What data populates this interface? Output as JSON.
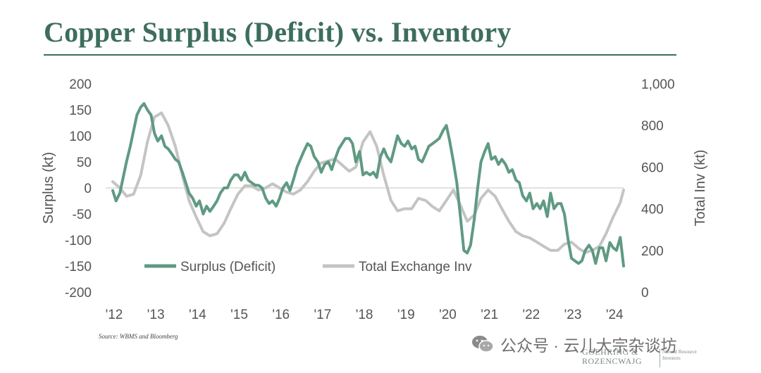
{
  "title": "Copper Surplus (Deficit) vs. Inventory",
  "source": "Source: WBMS and Bloomberg",
  "watermark": "公众号 · 云儿大宗杂谈坊",
  "brand": {
    "line1": "GOEHRING &",
    "line2": "ROZENCWAJG",
    "sub1": "Natural Resource",
    "sub2": "Investors"
  },
  "colors": {
    "title": "#3d6e5c",
    "surplus": "#5f9a82",
    "inventory": "#c4c4c4",
    "zero": "#d8d8d8",
    "axis_text": "#555555"
  },
  "chart_data": {
    "type": "line",
    "title": "Copper Surplus (Deficit) vs. Inventory",
    "ylabel": "Surplus (kt)",
    "y2label": "Total Inv (kt)",
    "x_ticks": [
      "'12",
      "'13",
      "'14",
      "'15",
      "'16",
      "'17",
      "'18",
      "'19",
      "'20",
      "'21",
      "'22",
      "'23",
      "'24"
    ],
    "ylim": [
      -200,
      200
    ],
    "y_ticks": [
      "200",
      "150",
      "100",
      "50",
      "0",
      "-50",
      "-100",
      "-150",
      "-200"
    ],
    "y2lim": [
      0,
      1000
    ],
    "y2_ticks": [
      "1,000",
      "800",
      "600",
      "400",
      "200",
      "0"
    ],
    "legend": {
      "placement": "bottom-left",
      "entries": [
        "Surplus (Deficit)",
        "Total Exchange Inv"
      ]
    },
    "series": [
      {
        "name": "Surplus (Deficit)",
        "axis": "left",
        "points": [
          [
            2012.0,
            -5
          ],
          [
            2012.08,
            -25
          ],
          [
            2012.17,
            -10
          ],
          [
            2012.25,
            20
          ],
          [
            2012.33,
            50
          ],
          [
            2012.42,
            80
          ],
          [
            2012.5,
            110
          ],
          [
            2012.58,
            140
          ],
          [
            2012.67,
            155
          ],
          [
            2012.75,
            162
          ],
          [
            2012.83,
            150
          ],
          [
            2012.92,
            140
          ],
          [
            2013.0,
            105
          ],
          [
            2013.08,
            90
          ],
          [
            2013.17,
            100
          ],
          [
            2013.25,
            80
          ],
          [
            2013.33,
            75
          ],
          [
            2013.42,
            65
          ],
          [
            2013.5,
            55
          ],
          [
            2013.58,
            50
          ],
          [
            2013.67,
            30
          ],
          [
            2013.75,
            10
          ],
          [
            2013.83,
            -10
          ],
          [
            2013.92,
            -20
          ],
          [
            2014.0,
            -35
          ],
          [
            2014.08,
            -25
          ],
          [
            2014.17,
            -50
          ],
          [
            2014.25,
            -35
          ],
          [
            2014.33,
            -45
          ],
          [
            2014.42,
            -35
          ],
          [
            2014.5,
            -25
          ],
          [
            2014.58,
            -10
          ],
          [
            2014.67,
            0
          ],
          [
            2014.75,
            0
          ],
          [
            2014.83,
            15
          ],
          [
            2014.92,
            25
          ],
          [
            2015.0,
            25
          ],
          [
            2015.08,
            15
          ],
          [
            2015.17,
            30
          ],
          [
            2015.25,
            15
          ],
          [
            2015.33,
            10
          ],
          [
            2015.42,
            5
          ],
          [
            2015.5,
            5
          ],
          [
            2015.58,
            0
          ],
          [
            2015.67,
            -20
          ],
          [
            2015.75,
            -30
          ],
          [
            2015.83,
            -25
          ],
          [
            2015.92,
            -35
          ],
          [
            2016.0,
            -20
          ],
          [
            2016.08,
            0
          ],
          [
            2016.17,
            10
          ],
          [
            2016.25,
            -5
          ],
          [
            2016.33,
            15
          ],
          [
            2016.42,
            40
          ],
          [
            2016.5,
            55
          ],
          [
            2016.58,
            70
          ],
          [
            2016.67,
            85
          ],
          [
            2016.75,
            80
          ],
          [
            2016.83,
            60
          ],
          [
            2016.92,
            50
          ],
          [
            2017.0,
            30
          ],
          [
            2017.08,
            45
          ],
          [
            2017.17,
            50
          ],
          [
            2017.25,
            35
          ],
          [
            2017.33,
            55
          ],
          [
            2017.42,
            75
          ],
          [
            2017.5,
            85
          ],
          [
            2017.58,
            95
          ],
          [
            2017.67,
            95
          ],
          [
            2017.75,
            85
          ],
          [
            2017.83,
            50
          ],
          [
            2017.92,
            70
          ],
          [
            2018.0,
            25
          ],
          [
            2018.08,
            30
          ],
          [
            2018.17,
            25
          ],
          [
            2018.25,
            30
          ],
          [
            2018.33,
            20
          ],
          [
            2018.42,
            60
          ],
          [
            2018.5,
            75
          ],
          [
            2018.58,
            60
          ],
          [
            2018.67,
            50
          ],
          [
            2018.75,
            75
          ],
          [
            2018.83,
            100
          ],
          [
            2018.92,
            85
          ],
          [
            2019.0,
            80
          ],
          [
            2019.08,
            90
          ],
          [
            2019.17,
            75
          ],
          [
            2019.25,
            80
          ],
          [
            2019.33,
            55
          ],
          [
            2019.42,
            50
          ],
          [
            2019.5,
            65
          ],
          [
            2019.58,
            80
          ],
          [
            2019.67,
            85
          ],
          [
            2019.75,
            90
          ],
          [
            2019.83,
            95
          ],
          [
            2019.92,
            110
          ],
          [
            2020.0,
            120
          ],
          [
            2020.08,
            90
          ],
          [
            2020.17,
            50
          ],
          [
            2020.25,
            10
          ],
          [
            2020.33,
            -50
          ],
          [
            2020.42,
            -120
          ],
          [
            2020.5,
            -125
          ],
          [
            2020.58,
            -110
          ],
          [
            2020.67,
            -60
          ],
          [
            2020.75,
            0
          ],
          [
            2020.83,
            50
          ],
          [
            2020.92,
            70
          ],
          [
            2021.0,
            85
          ],
          [
            2021.08,
            55
          ],
          [
            2021.17,
            60
          ],
          [
            2021.25,
            45
          ],
          [
            2021.33,
            55
          ],
          [
            2021.42,
            45
          ],
          [
            2021.5,
            30
          ],
          [
            2021.58,
            35
          ],
          [
            2021.67,
            15
          ],
          [
            2021.75,
            10
          ],
          [
            2021.83,
            -15
          ],
          [
            2021.92,
            -25
          ],
          [
            2022.0,
            -10
          ],
          [
            2022.08,
            -40
          ],
          [
            2022.17,
            -30
          ],
          [
            2022.25,
            -40
          ],
          [
            2022.33,
            -25
          ],
          [
            2022.42,
            -55
          ],
          [
            2022.5,
            -10
          ],
          [
            2022.58,
            -40
          ],
          [
            2022.67,
            -30
          ],
          [
            2022.75,
            -30
          ],
          [
            2022.83,
            -50
          ],
          [
            2022.92,
            -100
          ],
          [
            2023.0,
            -135
          ],
          [
            2023.08,
            -140
          ],
          [
            2023.17,
            -145
          ],
          [
            2023.25,
            -140
          ],
          [
            2023.33,
            -120
          ],
          [
            2023.42,
            -110
          ],
          [
            2023.5,
            -120
          ],
          [
            2023.58,
            -145
          ],
          [
            2023.67,
            -115
          ],
          [
            2023.75,
            -115
          ],
          [
            2023.83,
            -140
          ],
          [
            2023.92,
            -105
          ],
          [
            2024.0,
            -115
          ],
          [
            2024.08,
            -120
          ],
          [
            2024.17,
            -95
          ],
          [
            2024.25,
            -150
          ]
        ]
      },
      {
        "name": "Total Exchange Inv",
        "axis": "right",
        "points": [
          [
            2012.0,
            530
          ],
          [
            2012.17,
            500
          ],
          [
            2012.33,
            460
          ],
          [
            2012.5,
            470
          ],
          [
            2012.67,
            560
          ],
          [
            2012.83,
            720
          ],
          [
            2013.0,
            840
          ],
          [
            2013.17,
            860
          ],
          [
            2013.33,
            800
          ],
          [
            2013.5,
            700
          ],
          [
            2013.67,
            560
          ],
          [
            2013.83,
            440
          ],
          [
            2014.0,
            360
          ],
          [
            2014.17,
            290
          ],
          [
            2014.33,
            270
          ],
          [
            2014.5,
            280
          ],
          [
            2014.67,
            330
          ],
          [
            2014.83,
            400
          ],
          [
            2015.0,
            470
          ],
          [
            2015.17,
            510
          ],
          [
            2015.33,
            510
          ],
          [
            2015.5,
            490
          ],
          [
            2015.67,
            500
          ],
          [
            2015.83,
            520
          ],
          [
            2016.0,
            500
          ],
          [
            2016.17,
            480
          ],
          [
            2016.33,
            470
          ],
          [
            2016.5,
            490
          ],
          [
            2016.67,
            530
          ],
          [
            2016.83,
            580
          ],
          [
            2017.0,
            620
          ],
          [
            2017.17,
            630
          ],
          [
            2017.33,
            640
          ],
          [
            2017.5,
            610
          ],
          [
            2017.67,
            580
          ],
          [
            2017.83,
            600
          ],
          [
            2018.0,
            720
          ],
          [
            2018.17,
            770
          ],
          [
            2018.33,
            700
          ],
          [
            2018.5,
            560
          ],
          [
            2018.67,
            440
          ],
          [
            2018.83,
            390
          ],
          [
            2019.0,
            400
          ],
          [
            2019.17,
            400
          ],
          [
            2019.33,
            450
          ],
          [
            2019.5,
            440
          ],
          [
            2019.67,
            410
          ],
          [
            2019.83,
            390
          ],
          [
            2020.0,
            440
          ],
          [
            2020.17,
            490
          ],
          [
            2020.33,
            420
          ],
          [
            2020.5,
            340
          ],
          [
            2020.67,
            370
          ],
          [
            2020.83,
            450
          ],
          [
            2021.0,
            490
          ],
          [
            2021.17,
            460
          ],
          [
            2021.33,
            400
          ],
          [
            2021.5,
            340
          ],
          [
            2021.67,
            290
          ],
          [
            2021.83,
            270
          ],
          [
            2022.0,
            260
          ],
          [
            2022.17,
            240
          ],
          [
            2022.33,
            220
          ],
          [
            2022.5,
            200
          ],
          [
            2022.67,
            200
          ],
          [
            2022.83,
            230
          ],
          [
            2023.0,
            240
          ],
          [
            2023.17,
            210
          ],
          [
            2023.33,
            190
          ],
          [
            2023.5,
            200
          ],
          [
            2023.67,
            220
          ],
          [
            2023.83,
            280
          ],
          [
            2024.0,
            360
          ],
          [
            2024.17,
            430
          ],
          [
            2024.25,
            490
          ]
        ]
      }
    ]
  }
}
